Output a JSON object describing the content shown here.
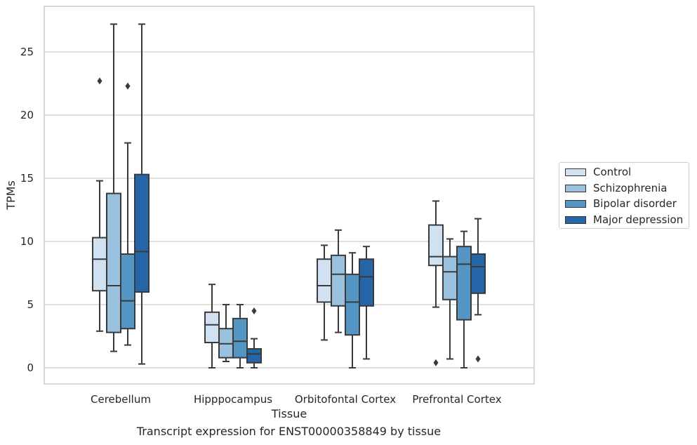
{
  "chart_data": {
    "type": "box",
    "title": "Transcript expression for ENST00000358849 by tissue",
    "xlabel": "Tissue",
    "ylabel": "TPMs",
    "ylim": [
      -1.3,
      28.5
    ],
    "yticks": [
      0,
      5,
      10,
      15,
      20,
      25
    ],
    "grid": "horizontal",
    "legend_position": "right",
    "categories": [
      "Cerebellum",
      "Hipppocampus",
      "Orbitofontal Cortex",
      "Prefrontal Cortex"
    ],
    "series": [
      {
        "name": "Control",
        "color": "#d0e1f2",
        "boxes": [
          {
            "whisker_low": 2.9,
            "q1": 6.1,
            "median": 8.6,
            "q3": 10.3,
            "whisker_high": 14.8,
            "outliers": [
              22.7
            ]
          },
          {
            "whisker_low": 0.0,
            "q1": 2.0,
            "median": 3.4,
            "q3": 4.4,
            "whisker_high": 6.6,
            "outliers": []
          },
          {
            "whisker_low": 2.2,
            "q1": 5.2,
            "median": 6.5,
            "q3": 8.6,
            "whisker_high": 9.7,
            "outliers": []
          },
          {
            "whisker_low": 4.8,
            "q1": 8.1,
            "median": 8.8,
            "q3": 11.3,
            "whisker_high": 13.2,
            "outliers": [
              0.4
            ]
          }
        ]
      },
      {
        "name": "Schizophrenia",
        "color": "#9ac1de",
        "boxes": [
          {
            "whisker_low": 1.3,
            "q1": 2.8,
            "median": 6.5,
            "q3": 13.8,
            "whisker_high": 27.2,
            "outliers": []
          },
          {
            "whisker_low": 0.5,
            "q1": 0.8,
            "median": 1.9,
            "q3": 3.1,
            "whisker_high": 5.0,
            "outliers": []
          },
          {
            "whisker_low": 2.8,
            "q1": 4.9,
            "median": 7.4,
            "q3": 8.9,
            "whisker_high": 10.9,
            "outliers": []
          },
          {
            "whisker_low": 0.7,
            "q1": 5.4,
            "median": 7.6,
            "q3": 8.8,
            "whisker_high": 10.2,
            "outliers": []
          }
        ]
      },
      {
        "name": "Bipolar disorder",
        "color": "#5495c3",
        "boxes": [
          {
            "whisker_low": 1.8,
            "q1": 3.1,
            "median": 5.3,
            "q3": 9.0,
            "whisker_high": 17.8,
            "outliers": [
              22.3
            ]
          },
          {
            "whisker_low": 0.0,
            "q1": 0.8,
            "median": 2.1,
            "q3": 3.9,
            "whisker_high": 5.0,
            "outliers": []
          },
          {
            "whisker_low": 0.0,
            "q1": 2.6,
            "median": 5.2,
            "q3": 7.4,
            "whisker_high": 9.1,
            "outliers": []
          },
          {
            "whisker_low": 0.0,
            "q1": 3.8,
            "median": 8.2,
            "q3": 9.6,
            "whisker_high": 10.8,
            "outliers": []
          }
        ]
      },
      {
        "name": "Major depression",
        "color": "#2566a8",
        "boxes": [
          {
            "whisker_low": 0.3,
            "q1": 6.0,
            "median": 9.2,
            "q3": 15.3,
            "whisker_high": 27.2,
            "outliers": []
          },
          {
            "whisker_low": 0.0,
            "q1": 0.4,
            "median": 1.1,
            "q3": 1.5,
            "whisker_high": 2.3,
            "outliers": [
              4.5
            ]
          },
          {
            "whisker_low": 0.7,
            "q1": 4.9,
            "median": 7.2,
            "q3": 8.6,
            "whisker_high": 9.6,
            "outliers": []
          },
          {
            "whisker_low": 4.2,
            "q1": 5.9,
            "median": 8.0,
            "q3": 9.0,
            "whisker_high": 11.8,
            "outliers": [
              0.7
            ]
          }
        ]
      }
    ]
  }
}
